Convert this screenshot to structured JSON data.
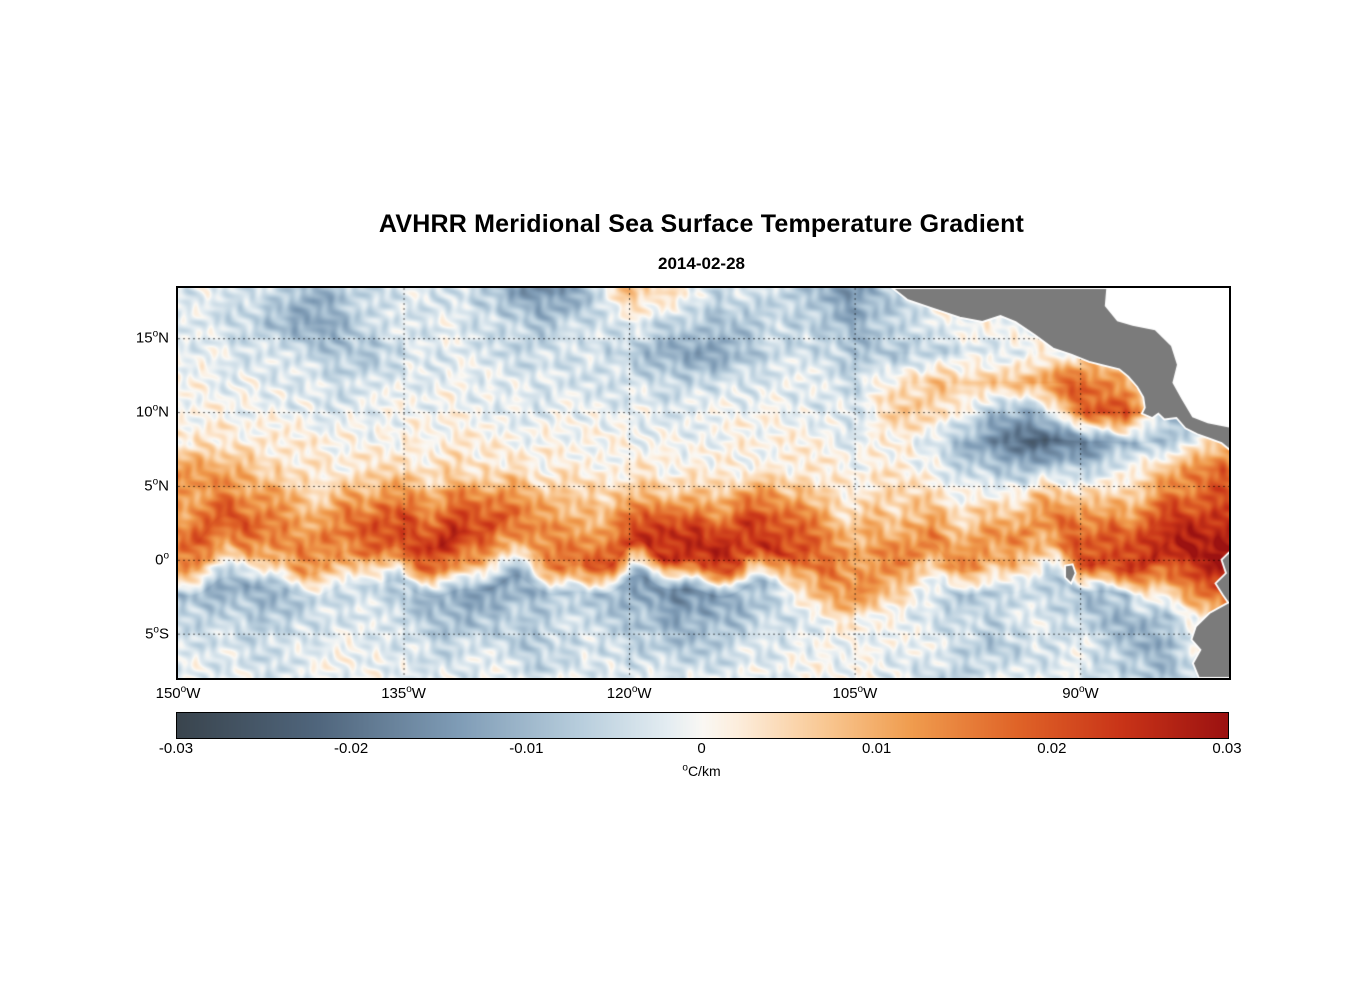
{
  "chart_data": {
    "type": "heatmap",
    "title": "AVHRR Meridional Sea Surface Temperature Gradient",
    "date": "2014-02-28",
    "x_axis": {
      "lon_min": -150,
      "lon_max": -80.1,
      "ticks": [
        {
          "num": "150",
          "sup": "o",
          "post": "W",
          "lon": -150
        },
        {
          "num": "135",
          "sup": "o",
          "post": "W",
          "lon": -135
        },
        {
          "num": "120",
          "sup": "o",
          "post": "W",
          "lon": -120
        },
        {
          "num": "105",
          "sup": "o",
          "post": "W",
          "lon": -105
        },
        {
          "num": "90",
          "sup": "o",
          "post": "W",
          "lon": -90
        }
      ]
    },
    "y_axis": {
      "lat_min": -8,
      "lat_max": 18.4,
      "ticks": [
        {
          "num": "15",
          "sup": "o",
          "post": "N",
          "lat": 15
        },
        {
          "num": "10",
          "sup": "o",
          "post": "N",
          "lat": 10
        },
        {
          "num": "5",
          "sup": "o",
          "post": "N",
          "lat": 5
        },
        {
          "num": "0",
          "sup": "o",
          "post": "",
          "lat": 0
        },
        {
          "num": "5",
          "sup": "o",
          "post": "S",
          "lat": -5
        }
      ]
    },
    "colorbar": {
      "min": -0.03,
      "max": 0.03,
      "tick_labels": [
        "-0.03",
        "-0.02",
        "-0.01",
        "0",
        "0.01",
        "0.02",
        "0.03"
      ],
      "unit_sup": "o",
      "unit_text": "C/km"
    },
    "colormap": [
      {
        "t": -0.03,
        "color": "#3a454e"
      },
      {
        "t": -0.022,
        "color": "#50667d"
      },
      {
        "t": -0.014,
        "color": "#7f9cb6"
      },
      {
        "t": -0.007,
        "color": "#b8cedd"
      },
      {
        "t": -0.002,
        "color": "#e4edf2"
      },
      {
        "t": 0.0,
        "color": "#faf8f4"
      },
      {
        "t": 0.002,
        "color": "#fdeedd"
      },
      {
        "t": 0.007,
        "color": "#f9c893"
      },
      {
        "t": 0.012,
        "color": "#f09c4e"
      },
      {
        "t": 0.018,
        "color": "#e06428"
      },
      {
        "t": 0.024,
        "color": "#c93418"
      },
      {
        "t": 0.03,
        "color": "#9c1211"
      }
    ],
    "grid": {
      "scale": 0.001,
      "lons": [
        -150,
        -147,
        -144,
        -141,
        -138,
        -135,
        -132,
        -129,
        -126,
        -123,
        -120,
        -117,
        -114,
        -111,
        -108,
        -105,
        -102,
        -99,
        -96,
        -93,
        -90,
        -87,
        -84,
        -81
      ],
      "lats": [
        18,
        16,
        14,
        12,
        10,
        8,
        6,
        4,
        2,
        0,
        -2,
        -4,
        -6,
        -8
      ],
      "values": [
        [
          -3,
          -2,
          -5,
          -12,
          -6,
          -2,
          -3,
          -8,
          -16,
          -10,
          8,
          3,
          -5,
          -4,
          -10,
          -14,
          -6,
          -2,
          0,
          0,
          0,
          0,
          0,
          0
        ],
        [
          -2,
          -4,
          -8,
          -14,
          -7,
          -3,
          -2,
          -4,
          -8,
          -4,
          -2,
          -6,
          -10,
          -5,
          -6,
          -12,
          -5,
          0,
          0,
          0,
          0,
          0,
          0,
          0
        ],
        [
          -1,
          -2,
          -4,
          -6,
          -9,
          -4,
          -2,
          -3,
          -5,
          -3,
          -7,
          -12,
          -14,
          -6,
          -4,
          -7,
          -9,
          -5,
          -2,
          0,
          0,
          0,
          0,
          0
        ],
        [
          0,
          -1,
          -2,
          -3,
          -5,
          -2,
          -1,
          -2,
          -3,
          -2,
          -3,
          -6,
          -4,
          -2,
          -3,
          -5,
          4,
          8,
          6,
          12,
          20,
          10,
          -6,
          0
        ],
        [
          1,
          0,
          -1,
          -2,
          -2,
          -1,
          0,
          -1,
          -2,
          -1,
          -2,
          -2,
          -1,
          0,
          -2,
          -3,
          6,
          5,
          -8,
          -12,
          18,
          24,
          -12,
          -6
        ],
        [
          2,
          3,
          2,
          1,
          0,
          1,
          2,
          1,
          0,
          1,
          0,
          -1,
          0,
          1,
          0,
          -2,
          2,
          -6,
          -16,
          -22,
          -20,
          -10,
          -8,
          6
        ],
        [
          16,
          10,
          5,
          3,
          2,
          3,
          5,
          3,
          2,
          3,
          2,
          1,
          2,
          1,
          2,
          1,
          2,
          -2,
          -6,
          -9,
          -6,
          3,
          8,
          18
        ],
        [
          10,
          14,
          12,
          8,
          10,
          13,
          18,
          14,
          10,
          8,
          6,
          10,
          15,
          12,
          8,
          5,
          4,
          3,
          5,
          6,
          8,
          10,
          14,
          20
        ],
        [
          18,
          22,
          17,
          14,
          18,
          22,
          26,
          20,
          15,
          13,
          18,
          24,
          27,
          22,
          15,
          10,
          8,
          10,
          12,
          14,
          18,
          22,
          24,
          26
        ],
        [
          14,
          12,
          10,
          12,
          15,
          18,
          14,
          10,
          12,
          18,
          23,
          26,
          20,
          24,
          21,
          12,
          14,
          16,
          10,
          8,
          20,
          24,
          27,
          30
        ],
        [
          -8,
          -12,
          -10,
          -6,
          -4,
          -8,
          -12,
          -16,
          -10,
          -6,
          -12,
          -18,
          -14,
          -8,
          8,
          14,
          8,
          -6,
          -8,
          -4,
          -10,
          -8,
          14,
          22
        ],
        [
          -4,
          -6,
          -8,
          -4,
          -2,
          -6,
          -10,
          -8,
          -6,
          -4,
          -8,
          -12,
          -10,
          -6,
          -2,
          2,
          -2,
          -4,
          -6,
          -2,
          -6,
          -10,
          -8,
          6
        ],
        [
          -2,
          -3,
          -4,
          -2,
          -1,
          -3,
          -5,
          -4,
          -8,
          -3,
          -5,
          -7,
          -5,
          -3,
          -1,
          0,
          -2,
          -3,
          -8,
          -4,
          -2,
          -8,
          -12,
          14
        ],
        [
          -1,
          -2,
          -2,
          -1,
          0,
          -2,
          -3,
          -2,
          -4,
          -2,
          -2,
          -3,
          -2,
          -1,
          0,
          -1,
          -2,
          -6,
          -4,
          -2,
          -3,
          -6,
          -8,
          -5
        ]
      ]
    },
    "land": {
      "color": "#7b7b7b",
      "coast_color": "#ffffff",
      "polygons": {
        "caribbean": [
          [
            -88.2,
            18.4
          ],
          [
            -80,
            18.4
          ],
          [
            -80,
            9.0
          ],
          [
            -81.5,
            9.3
          ],
          [
            -82.5,
            9.7
          ],
          [
            -83.2,
            10.9
          ],
          [
            -83.8,
            12.0
          ],
          [
            -83.5,
            13.2
          ],
          [
            -83.9,
            14.5
          ],
          [
            -85.0,
            15.6
          ],
          [
            -86.5,
            15.9
          ],
          [
            -87.5,
            16.2
          ],
          [
            -88.3,
            17.2
          ]
        ],
        "central_america": [
          [
            -102.5,
            18.4
          ],
          [
            -101.5,
            17.6
          ],
          [
            -99.8,
            17.0
          ],
          [
            -98.0,
            16.4
          ],
          [
            -96.5,
            16.1
          ],
          [
            -95.3,
            16.5
          ],
          [
            -94.3,
            16.1
          ],
          [
            -93.0,
            15.2
          ],
          [
            -91.8,
            14.3
          ],
          [
            -90.6,
            13.9
          ],
          [
            -89.4,
            13.4
          ],
          [
            -88.2,
            13.1
          ],
          [
            -87.4,
            12.9
          ],
          [
            -86.8,
            12.4
          ],
          [
            -86.2,
            11.7
          ],
          [
            -85.8,
            11.0
          ],
          [
            -85.7,
            10.3
          ],
          [
            -85.9,
            9.9
          ],
          [
            -85.2,
            9.6
          ],
          [
            -84.8,
            9.9
          ],
          [
            -84.4,
            9.5
          ],
          [
            -83.6,
            9.6
          ],
          [
            -83.0,
            8.9
          ],
          [
            -82.2,
            8.5
          ],
          [
            -81.4,
            8.2
          ],
          [
            -80.6,
            7.9
          ],
          [
            -80.0,
            7.4
          ],
          [
            -80.0,
            9.0
          ],
          [
            -81.5,
            9.3
          ],
          [
            -82.5,
            9.7
          ],
          [
            -83.2,
            10.9
          ],
          [
            -83.8,
            12.0
          ],
          [
            -83.5,
            13.2
          ],
          [
            -83.9,
            14.5
          ],
          [
            -85.0,
            15.6
          ],
          [
            -86.5,
            15.9
          ],
          [
            -87.5,
            16.2
          ],
          [
            -88.3,
            17.2
          ],
          [
            -88.2,
            18.4
          ]
        ],
        "south_america": [
          [
            -80,
            0.6
          ],
          [
            -80.6,
            0.0
          ],
          [
            -80.3,
            -0.9
          ],
          [
            -81.0,
            -1.6
          ],
          [
            -80.5,
            -2.4
          ],
          [
            -80.15,
            -2.9
          ],
          [
            -81.4,
            -3.6
          ],
          [
            -82.3,
            -4.5
          ],
          [
            -82.6,
            -5.4
          ],
          [
            -82.0,
            -6.1
          ],
          [
            -82.5,
            -7.0
          ],
          [
            -82.1,
            -8.0
          ],
          [
            -80,
            -8.0
          ]
        ],
        "galapagos": [
          [
            -91.0,
            -0.4
          ],
          [
            -90.5,
            -0.3
          ],
          [
            -90.3,
            -0.9
          ],
          [
            -90.6,
            -1.6
          ],
          [
            -91.0,
            -1.2
          ]
        ]
      }
    }
  }
}
